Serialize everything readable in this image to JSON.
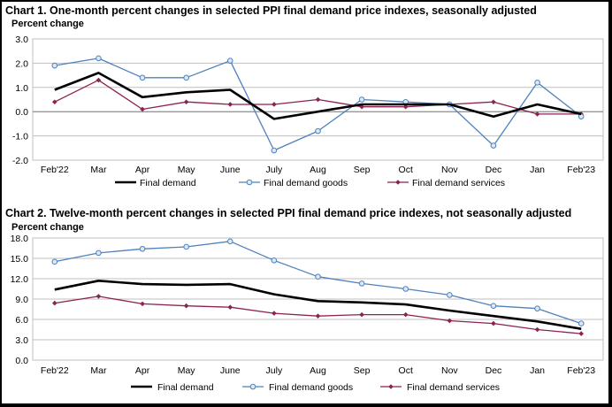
{
  "chart_data": [
    {
      "type": "line",
      "title": "Chart 1. One-month percent changes in selected PPI final demand price indexes, seasonally adjusted",
      "ylabel": "Percent change",
      "xlabel": "",
      "categories": [
        "Feb'22",
        "Mar",
        "Apr",
        "May",
        "June",
        "July",
        "Aug",
        "Sep",
        "Oct",
        "Nov",
        "Dec",
        "Jan",
        "Feb'23"
      ],
      "ylim": [
        -2.0,
        3.0
      ],
      "yticks": [
        "-2.0",
        "-1.0",
        "0.0",
        "1.0",
        "2.0",
        "3.0"
      ],
      "grid": true,
      "legend_position": "bottom",
      "series": [
        {
          "name": "Final demand",
          "values": [
            0.9,
            1.6,
            0.6,
            0.8,
            0.9,
            -0.3,
            0.0,
            0.3,
            0.3,
            0.3,
            -0.2,
            0.3,
            -0.1
          ],
          "color": "#000000",
          "marker": "none"
        },
        {
          "name": "Final demand goods",
          "values": [
            1.9,
            2.2,
            1.4,
            1.4,
            2.1,
            -1.6,
            -0.8,
            0.5,
            0.4,
            0.3,
            -1.4,
            1.2,
            -0.2
          ],
          "color": "#4f81bd",
          "marker": "circle"
        },
        {
          "name": "Final demand services",
          "values": [
            0.4,
            1.3,
            0.1,
            0.4,
            0.3,
            0.3,
            0.5,
            0.2,
            0.2,
            0.3,
            0.4,
            -0.1,
            -0.1
          ],
          "color": "#8b2252",
          "marker": "diamond"
        }
      ]
    },
    {
      "type": "line",
      "title": "Chart 2. Twelve-month percent changes in selected PPI final demand price indexes, not seasonally adjusted",
      "ylabel": "Percent change",
      "xlabel": "",
      "categories": [
        "Feb'22",
        "Mar",
        "Apr",
        "May",
        "June",
        "July",
        "Aug",
        "Sep",
        "Oct",
        "Nov",
        "Dec",
        "Jan",
        "Feb'23"
      ],
      "ylim": [
        0.0,
        18.0
      ],
      "yticks": [
        "0.0",
        "3.0",
        "6.0",
        "9.0",
        "12.0",
        "15.0",
        "18.0"
      ],
      "grid": true,
      "legend_position": "bottom",
      "series": [
        {
          "name": "Final demand",
          "values": [
            10.4,
            11.7,
            11.2,
            11.1,
            11.2,
            9.7,
            8.7,
            8.5,
            8.2,
            7.3,
            6.5,
            5.7,
            4.6
          ],
          "color": "#000000",
          "marker": "none"
        },
        {
          "name": "Final demand goods",
          "values": [
            14.5,
            15.8,
            16.4,
            16.7,
            17.5,
            14.7,
            12.3,
            11.3,
            10.5,
            9.6,
            8.0,
            7.6,
            5.4
          ],
          "color": "#4f81bd",
          "marker": "circle"
        },
        {
          "name": "Final demand services",
          "values": [
            8.4,
            9.4,
            8.3,
            8.0,
            7.8,
            6.9,
            6.5,
            6.7,
            6.7,
            5.8,
            5.4,
            4.5,
            3.9
          ],
          "color": "#8b2252",
          "marker": "diamond"
        }
      ]
    }
  ]
}
